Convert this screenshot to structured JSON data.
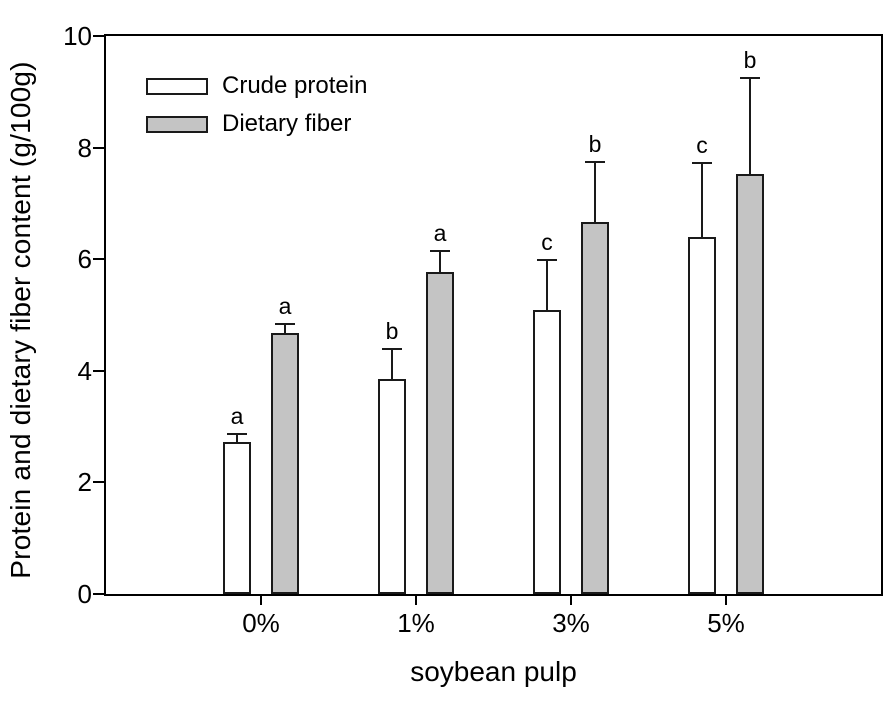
{
  "figure": {
    "ylabel": "Protein and dietary fiber content (g/100g)",
    "xlabel": "soybean pulp"
  },
  "chart_data": {
    "type": "bar",
    "title": "",
    "xlabel": "soybean pulp",
    "ylabel": "Protein and dietary fiber content (g/100g)",
    "categories": [
      "0%",
      "1%",
      "3%",
      "5%"
    ],
    "series": [
      {
        "name": "Crude protein",
        "fill": "#ffffff",
        "values": [
          2.72,
          3.86,
          5.09,
          6.39
        ],
        "errors_plus": [
          0.15,
          0.53,
          0.9,
          1.33
        ],
        "sig_letters": [
          "a",
          "b",
          "c",
          "c"
        ]
      },
      {
        "name": "Dietary fiber",
        "fill": "#c4c4c4",
        "values": [
          4.68,
          5.77,
          6.67,
          7.53
        ],
        "errors_plus": [
          0.15,
          0.38,
          1.08,
          1.72
        ],
        "sig_letters": [
          "a",
          "a",
          "b",
          "b"
        ]
      }
    ],
    "ylim": [
      0,
      10
    ],
    "yticks": [
      0,
      2,
      4,
      6,
      8,
      10
    ],
    "legend_position": "upper-left",
    "grid": false,
    "colors": {
      "axis": "#000000",
      "bar_border": "#1a1a1a",
      "gray_fill": "#c4c4c4",
      "text": "#000000",
      "background": "#ffffff"
    }
  }
}
